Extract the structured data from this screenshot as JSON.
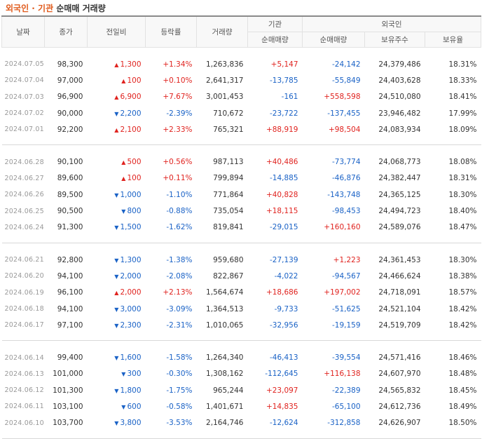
{
  "title": {
    "part1": "외국인 · 기관",
    "part2": "순매매 거래량"
  },
  "headers": {
    "date": "날짜",
    "close": "종가",
    "change": "전일비",
    "rate": "등락률",
    "volume": "거래량",
    "inst": "기관",
    "foreign": "외국인",
    "inst_net": "순매매량",
    "for_net": "순매매량",
    "for_hold": "보유주수",
    "for_ratio": "보유율"
  },
  "groups": [
    [
      {
        "date": "2024.07.05",
        "close": "98,300",
        "dir": "up",
        "change": "1,300",
        "rate": "+1.34%",
        "volume": "1,263,836",
        "inst": "+5,147",
        "foreign": "-24,142",
        "hold": "24,379,486",
        "ratio": "18.31%"
      },
      {
        "date": "2024.07.04",
        "close": "97,000",
        "dir": "up",
        "change": "100",
        "rate": "+0.10%",
        "volume": "2,641,317",
        "inst": "-13,785",
        "foreign": "-55,849",
        "hold": "24,403,628",
        "ratio": "18.33%"
      },
      {
        "date": "2024.07.03",
        "close": "96,900",
        "dir": "up",
        "change": "6,900",
        "rate": "+7.67%",
        "volume": "3,001,453",
        "inst": "-161",
        "foreign": "+558,598",
        "hold": "24,510,080",
        "ratio": "18.41%"
      },
      {
        "date": "2024.07.02",
        "close": "90,000",
        "dir": "down",
        "change": "2,200",
        "rate": "-2.39%",
        "volume": "710,672",
        "inst": "-23,722",
        "foreign": "-137,455",
        "hold": "23,946,482",
        "ratio": "17.99%"
      },
      {
        "date": "2024.07.01",
        "close": "92,200",
        "dir": "up",
        "change": "2,100",
        "rate": "+2.33%",
        "volume": "765,321",
        "inst": "+88,919",
        "foreign": "+98,504",
        "hold": "24,083,934",
        "ratio": "18.09%"
      }
    ],
    [
      {
        "date": "2024.06.28",
        "close": "90,100",
        "dir": "up",
        "change": "500",
        "rate": "+0.56%",
        "volume": "987,113",
        "inst": "+40,486",
        "foreign": "-73,774",
        "hold": "24,068,773",
        "ratio": "18.08%"
      },
      {
        "date": "2024.06.27",
        "close": "89,600",
        "dir": "up",
        "change": "100",
        "rate": "+0.11%",
        "volume": "799,894",
        "inst": "-14,885",
        "foreign": "-46,876",
        "hold": "24,382,447",
        "ratio": "18.31%"
      },
      {
        "date": "2024.06.26",
        "close": "89,500",
        "dir": "down",
        "change": "1,000",
        "rate": "-1.10%",
        "volume": "771,864",
        "inst": "+40,828",
        "foreign": "-143,748",
        "hold": "24,365,125",
        "ratio": "18.30%"
      },
      {
        "date": "2024.06.25",
        "close": "90,500",
        "dir": "down",
        "change": "800",
        "rate": "-0.88%",
        "volume": "735,054",
        "inst": "+18,115",
        "foreign": "-98,453",
        "hold": "24,494,723",
        "ratio": "18.40%"
      },
      {
        "date": "2024.06.24",
        "close": "91,300",
        "dir": "down",
        "change": "1,500",
        "rate": "-1.62%",
        "volume": "819,841",
        "inst": "-29,015",
        "foreign": "+160,160",
        "hold": "24,589,076",
        "ratio": "18.47%"
      }
    ],
    [
      {
        "date": "2024.06.21",
        "close": "92,800",
        "dir": "down",
        "change": "1,300",
        "rate": "-1.38%",
        "volume": "959,680",
        "inst": "-27,139",
        "foreign": "+1,223",
        "hold": "24,361,453",
        "ratio": "18.30%"
      },
      {
        "date": "2024.06.20",
        "close": "94,100",
        "dir": "down",
        "change": "2,000",
        "rate": "-2.08%",
        "volume": "822,867",
        "inst": "-4,022",
        "foreign": "-94,567",
        "hold": "24,466,624",
        "ratio": "18.38%"
      },
      {
        "date": "2024.06.19",
        "close": "96,100",
        "dir": "up",
        "change": "2,000",
        "rate": "+2.13%",
        "volume": "1,564,674",
        "inst": "+18,686",
        "foreign": "+197,002",
        "hold": "24,718,091",
        "ratio": "18.57%"
      },
      {
        "date": "2024.06.18",
        "close": "94,100",
        "dir": "down",
        "change": "3,000",
        "rate": "-3.09%",
        "volume": "1,364,513",
        "inst": "-9,733",
        "foreign": "-51,625",
        "hold": "24,521,104",
        "ratio": "18.42%"
      },
      {
        "date": "2024.06.17",
        "close": "97,100",
        "dir": "down",
        "change": "2,300",
        "rate": "-2.31%",
        "volume": "1,010,065",
        "inst": "-32,956",
        "foreign": "-19,159",
        "hold": "24,519,709",
        "ratio": "18.42%"
      }
    ],
    [
      {
        "date": "2024.06.14",
        "close": "99,400",
        "dir": "down",
        "change": "1,600",
        "rate": "-1.58%",
        "volume": "1,264,340",
        "inst": "-46,413",
        "foreign": "-39,554",
        "hold": "24,571,416",
        "ratio": "18.46%"
      },
      {
        "date": "2024.06.13",
        "close": "101,000",
        "dir": "down",
        "change": "300",
        "rate": "-0.30%",
        "volume": "1,308,162",
        "inst": "-112,645",
        "foreign": "+116,138",
        "hold": "24,607,970",
        "ratio": "18.48%"
      },
      {
        "date": "2024.06.12",
        "close": "101,300",
        "dir": "down",
        "change": "1,800",
        "rate": "-1.75%",
        "volume": "965,244",
        "inst": "+23,097",
        "foreign": "-22,389",
        "hold": "24,565,832",
        "ratio": "18.45%"
      },
      {
        "date": "2024.06.11",
        "close": "103,100",
        "dir": "down",
        "change": "600",
        "rate": "-0.58%",
        "volume": "1,401,671",
        "inst": "+14,835",
        "foreign": "-65,100",
        "hold": "24,612,736",
        "ratio": "18.49%"
      },
      {
        "date": "2024.06.10",
        "close": "103,700",
        "dir": "down",
        "change": "3,800",
        "rate": "-3.53%",
        "volume": "2,164,746",
        "inst": "-12,624",
        "foreign": "-312,858",
        "hold": "24,626,907",
        "ratio": "18.50%"
      }
    ]
  ],
  "colors": {
    "up": "#e0231f",
    "down": "#1a62c6",
    "title_accent": "#e05a1b"
  },
  "icons": {
    "up": "▲",
    "down": "▼"
  }
}
